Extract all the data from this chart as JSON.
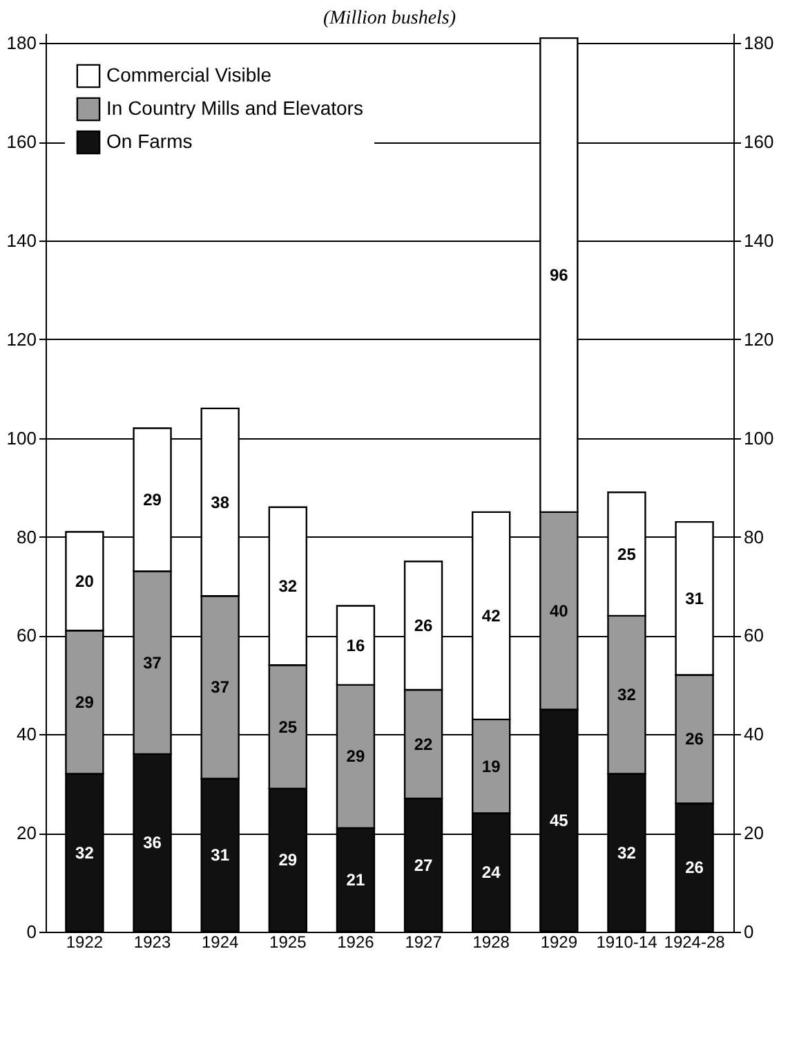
{
  "chart_data": {
    "type": "bar",
    "title": "(Million bushels)",
    "categories": [
      "1922",
      "1923",
      "1924",
      "1925",
      "1926",
      "1927",
      "1928",
      "1929",
      "1910-14",
      "1924-28"
    ],
    "stacked": true,
    "series": [
      {
        "name": "On Farms",
        "color": "#111111",
        "values": [
          32,
          36,
          31,
          29,
          21,
          27,
          24,
          45,
          32,
          26
        ]
      },
      {
        "name": "In Country Mills and Elevators",
        "color": "#9a9a9a",
        "values": [
          29,
          37,
          37,
          25,
          29,
          22,
          19,
          40,
          32,
          26
        ]
      },
      {
        "name": "Commercial Visible",
        "color": "#ffffff",
        "values": [
          20,
          29,
          38,
          32,
          16,
          26,
          42,
          96,
          25,
          31
        ]
      }
    ],
    "ylim": [
      0,
      182
    ],
    "yticks": [
      0,
      20,
      40,
      60,
      80,
      100,
      120,
      140,
      160,
      180
    ],
    "y2lim": [
      0,
      182
    ],
    "y2ticks": [
      0,
      20,
      40,
      60,
      80,
      100,
      120,
      140,
      160,
      180
    ],
    "grid": "y",
    "legend": "top left",
    "data_labels": true
  }
}
